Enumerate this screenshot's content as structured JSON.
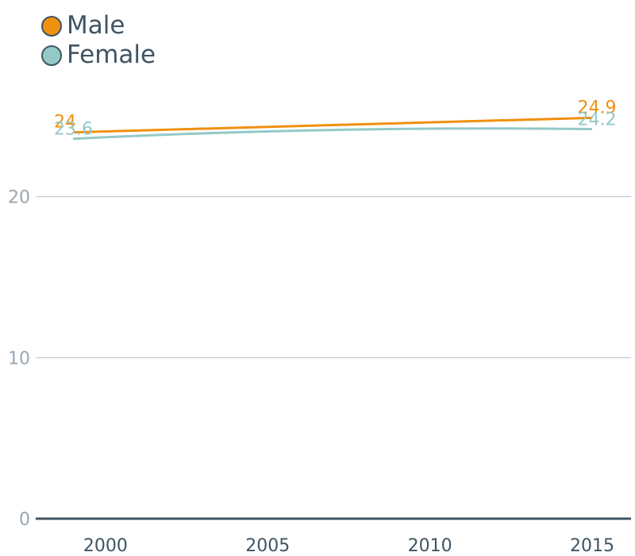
{
  "chart_data": {
    "type": "line",
    "title": "",
    "xlabel": "",
    "ylabel": "",
    "x": [
      1999,
      2015
    ],
    "xticks": [
      "2000",
      "2005",
      "2010",
      "2015"
    ],
    "yticks": [
      "0",
      "10",
      "20"
    ],
    "ylim": [
      0,
      30
    ],
    "grid": true,
    "legend_position": "top-left",
    "series": [
      {
        "name": "Male",
        "color": "#f0900f",
        "values": [
          24.0,
          24.9
        ],
        "labels": [
          "24",
          "24.9"
        ]
      },
      {
        "name": "Female",
        "color": "#94c9c7",
        "values": [
          23.6,
          24.2
        ],
        "labels": [
          "23.6",
          "24.2"
        ]
      }
    ]
  }
}
